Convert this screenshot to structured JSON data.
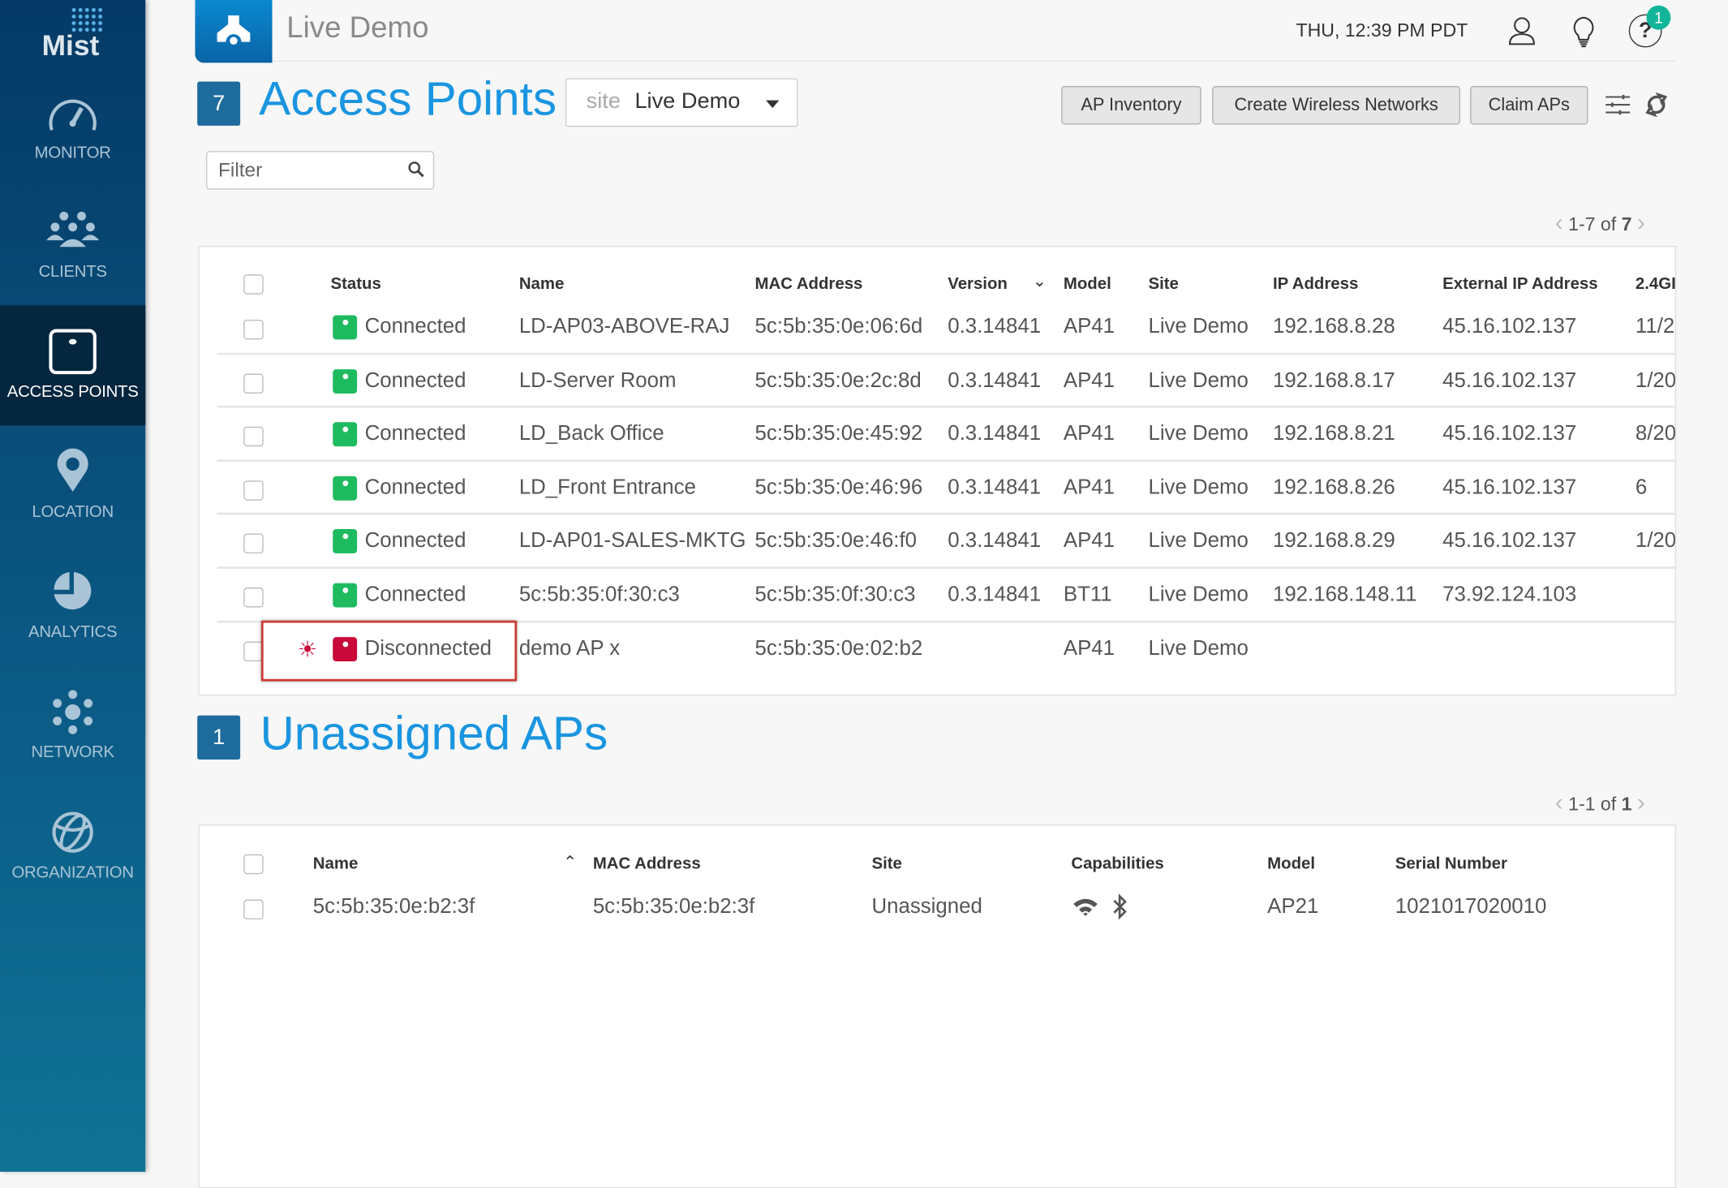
{
  "sidebar": {
    "logo": "Mist",
    "items": [
      {
        "label": "MONITOR",
        "icon": "speedometer-icon"
      },
      {
        "label": "CLIENTS",
        "icon": "clients-icon"
      },
      {
        "label": "ACCESS POINTS",
        "icon": "access-point-icon",
        "active": true
      },
      {
        "label": "LOCATION",
        "icon": "location-pin-icon"
      },
      {
        "label": "ANALYTICS",
        "icon": "pie-chart-icon"
      },
      {
        "label": "NETWORK",
        "icon": "network-icon"
      },
      {
        "label": "ORGANIZATION",
        "icon": "globe-icon"
      }
    ]
  },
  "header": {
    "site_name": "Live Demo",
    "datetime": "THU, 12:39 PM PDT",
    "help_badge": "1"
  },
  "access_points": {
    "count": "7",
    "title": "Access Points",
    "site_key": "site",
    "site_value": "Live Demo",
    "buttons": {
      "inventory": "AP Inventory",
      "create_wlan": "Create Wireless Networks",
      "claim": "Claim APs"
    },
    "filter_placeholder": "Filter",
    "pagination": "1-7 of ",
    "pagination_total": "7",
    "columns": [
      "Status",
      "Name",
      "MAC Address",
      "Version",
      "Model",
      "Site",
      "IP Address",
      "External IP Address",
      "2.4GI"
    ],
    "rows": [
      {
        "status": "Connected",
        "name": "LD-AP03-ABOVE-RAJ",
        "mac": "5c:5b:35:0e:06:6d",
        "version": "0.3.14841",
        "model": "AP41",
        "site": "Live Demo",
        "ip": "192.168.8.28",
        "ext_ip": "45.16.102.137",
        "g24": "11/2"
      },
      {
        "status": "Connected",
        "name": "LD-Server Room",
        "mac": "5c:5b:35:0e:2c:8d",
        "version": "0.3.14841",
        "model": "AP41",
        "site": "Live Demo",
        "ip": "192.168.8.17",
        "ext_ip": "45.16.102.137",
        "g24": "1/20"
      },
      {
        "status": "Connected",
        "name": "LD_Back Office",
        "mac": "5c:5b:35:0e:45:92",
        "version": "0.3.14841",
        "model": "AP41",
        "site": "Live Demo",
        "ip": "192.168.8.21",
        "ext_ip": "45.16.102.137",
        "g24": "8/20"
      },
      {
        "status": "Connected",
        "name": "LD_Front Entrance",
        "mac": "5c:5b:35:0e:46:96",
        "version": "0.3.14841",
        "model": "AP41",
        "site": "Live Demo",
        "ip": "192.168.8.26",
        "ext_ip": "45.16.102.137",
        "g24": "6"
      },
      {
        "status": "Connected",
        "name": "LD-AP01-SALES-MKTG",
        "mac": "5c:5b:35:0e:46:f0",
        "version": "0.3.14841",
        "model": "AP41",
        "site": "Live Demo",
        "ip": "192.168.8.29",
        "ext_ip": "45.16.102.137",
        "g24": "1/20"
      },
      {
        "status": "Connected",
        "name": "5c:5b:35:0f:30:c3",
        "mac": "5c:5b:35:0f:30:c3",
        "version": "0.3.14841",
        "model": "BT11",
        "site": "Live Demo",
        "ip": "192.168.148.11",
        "ext_ip": "73.92.124.103",
        "g24": ""
      },
      {
        "status": "Disconnected",
        "name": "demo AP x",
        "mac": "5c:5b:35:0e:02:b2",
        "version": "",
        "model": "AP41",
        "site": "Live Demo",
        "ip": "",
        "ext_ip": "",
        "g24": ""
      }
    ]
  },
  "unassigned": {
    "count": "1",
    "title": "Unassigned APs",
    "pagination": "1-1 of ",
    "pagination_total": "1",
    "columns": [
      "Name",
      "MAC Address",
      "Site",
      "Capabilities",
      "Model",
      "Serial Number"
    ],
    "rows": [
      {
        "name": "5c:5b:35:0e:b2:3f",
        "mac": "5c:5b:35:0e:b2:3f",
        "site": "Unassigned",
        "capabilities": [
          "wifi-icon",
          "bluetooth-icon"
        ],
        "model": "AP21",
        "serial": "1021017020010"
      }
    ]
  },
  "colors": {
    "connected": "#1dbb5e",
    "disconnected": "#c8093a",
    "accent": "#1a95e0",
    "badge": "#1e6c9e",
    "highlight": "#cc3b33"
  }
}
